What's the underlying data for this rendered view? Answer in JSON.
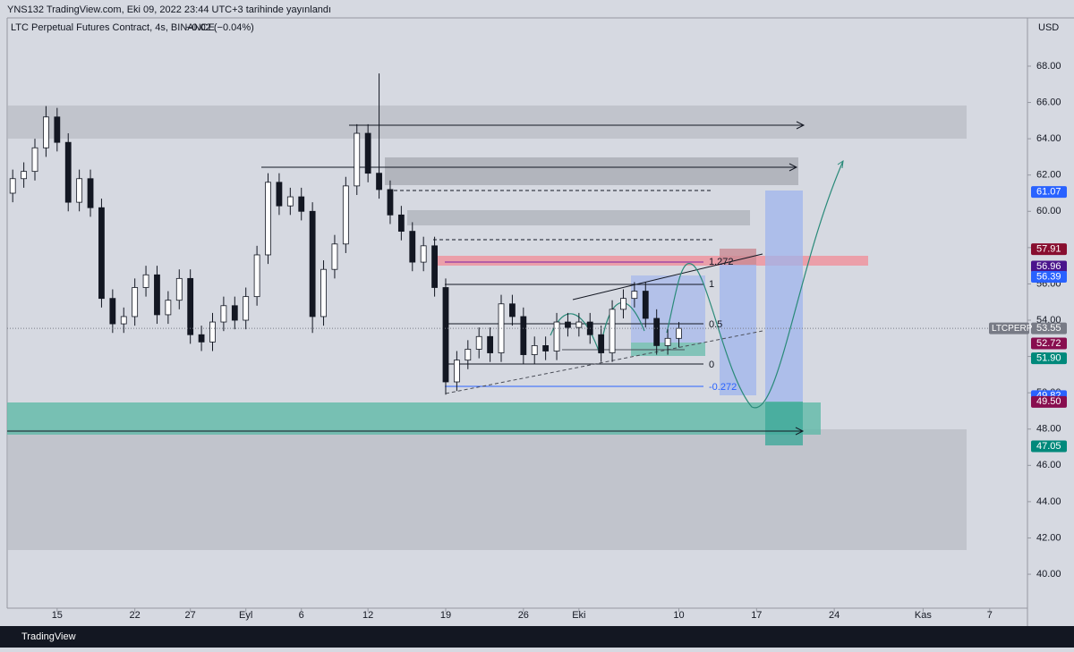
{
  "header": {
    "publisher": "YNS132 TradingView.com, Eki 09, 2022 23:44 UTC+3 tarihinde yayınlandı",
    "brand": "TradingView"
  },
  "chart_data": {
    "type": "candlestick",
    "title": "LTC Perpetual Futures Contract, 4s, BINANCE",
    "change": "−0.02 (−0.04%)",
    "currency": "USD",
    "symbol": "LTCPERP",
    "x": [
      -4,
      -3,
      -2,
      -1,
      0,
      1,
      2,
      3,
      4,
      5,
      6,
      7,
      8,
      9,
      10,
      11,
      12,
      13,
      14,
      15,
      16,
      17,
      18,
      19,
      20,
      21,
      22,
      23,
      24,
      25,
      26,
      27,
      28,
      29,
      30,
      31,
      32,
      33,
      34,
      35,
      36,
      37,
      38,
      39,
      40,
      41,
      42,
      43,
      44,
      45,
      46,
      47,
      48,
      49,
      50,
      51,
      52,
      53,
      54,
      55,
      56
    ],
    "open": [
      61.0,
      61.8,
      62.2,
      63.5,
      65.2,
      63.8,
      60.5,
      61.8,
      60.2,
      55.2,
      53.8,
      54.2,
      55.8,
      56.5,
      54.3,
      55.1,
      56.3,
      53.2,
      52.8,
      53.9,
      54.8,
      54.0,
      55.3,
      57.6,
      61.6,
      60.3,
      60.8,
      60.0,
      54.2,
      56.8,
      58.2,
      61.4,
      64.3,
      62.1,
      61.2,
      59.8,
      58.9,
      57.2,
      58.1,
      55.8,
      50.6,
      51.8,
      52.4,
      53.1,
      52.2,
      54.9,
      54.2,
      52.1,
      52.6,
      52.3,
      53.9,
      53.6,
      53.9,
      53.2,
      52.2,
      54.6,
      55.2,
      55.6,
      54.1,
      52.6,
      53.0
    ],
    "high": [
      62.3,
      62.7,
      64.0,
      65.8,
      65.7,
      64.3,
      62.3,
      62.3,
      60.7,
      55.7,
      54.7,
      56.3,
      57.0,
      57.0,
      55.6,
      56.8,
      56.8,
      53.7,
      54.4,
      55.3,
      55.3,
      55.8,
      58.1,
      62.1,
      62.1,
      61.3,
      61.3,
      60.5,
      57.3,
      58.7,
      61.9,
      64.8,
      64.8,
      67.6,
      61.7,
      60.3,
      59.4,
      58.6,
      58.6,
      56.3,
      52.3,
      52.9,
      53.6,
      53.6,
      55.4,
      55.4,
      54.7,
      53.1,
      53.1,
      54.4,
      54.4,
      54.4,
      54.4,
      53.7,
      55.1,
      55.7,
      56.1,
      56.1,
      54.6,
      53.5,
      53.9
    ],
    "low": [
      60.5,
      61.3,
      61.7,
      63.0,
      63.3,
      60.0,
      60.0,
      59.7,
      54.7,
      53.3,
      53.3,
      53.7,
      55.3,
      53.8,
      53.8,
      54.6,
      52.7,
      52.3,
      52.3,
      53.4,
      53.5,
      53.5,
      54.8,
      57.1,
      59.8,
      59.8,
      59.5,
      53.3,
      53.7,
      56.3,
      57.7,
      60.9,
      61.6,
      60.7,
      59.3,
      58.4,
      56.7,
      56.7,
      55.3,
      49.9,
      50.1,
      51.3,
      51.9,
      51.7,
      51.7,
      53.7,
      51.6,
      51.6,
      51.8,
      51.8,
      53.1,
      53.1,
      52.7,
      51.7,
      51.7,
      54.1,
      54.7,
      53.6,
      52.1,
      52.1,
      52.5
    ],
    "close": [
      61.8,
      62.2,
      63.5,
      65.2,
      63.8,
      60.5,
      61.8,
      60.2,
      55.2,
      53.8,
      54.2,
      55.8,
      56.5,
      54.3,
      55.1,
      56.3,
      53.2,
      52.8,
      53.9,
      54.8,
      54.0,
      55.3,
      57.6,
      61.6,
      60.3,
      60.8,
      60.0,
      54.2,
      56.8,
      58.2,
      61.4,
      64.3,
      62.1,
      61.2,
      59.8,
      58.9,
      57.2,
      58.1,
      55.8,
      50.6,
      51.8,
      52.4,
      53.1,
      52.2,
      54.9,
      54.2,
      52.1,
      52.6,
      52.3,
      53.9,
      53.6,
      53.9,
      53.2,
      52.2,
      54.6,
      55.2,
      55.6,
      54.1,
      52.6,
      53.0,
      53.55
    ],
    "xlim": [
      -4.5,
      87.4
    ],
    "xticks": [
      {
        "value": 0,
        "label": "15"
      },
      {
        "value": 7,
        "label": "22"
      },
      {
        "value": 12,
        "label": "27"
      },
      {
        "value": 17,
        "label": "Eyl"
      },
      {
        "value": 22,
        "label": "6"
      },
      {
        "value": 28,
        "label": "12"
      },
      {
        "value": 35,
        "label": "19"
      },
      {
        "value": 42,
        "label": "26"
      },
      {
        "value": 47,
        "label": "Eki"
      },
      {
        "value": 56,
        "label": "10"
      },
      {
        "value": 63,
        "label": "17"
      },
      {
        "value": 70,
        "label": "24"
      },
      {
        "value": 78,
        "label": "Kas"
      },
      {
        "value": 84,
        "label": "7"
      }
    ],
    "ylim": [
      38.13,
      70.66
    ],
    "yticks": [
      {
        "value": 40,
        "label": "40.00"
      },
      {
        "value": 42,
        "label": "42.00"
      },
      {
        "value": 44,
        "label": "44.00"
      },
      {
        "value": 46,
        "label": "46.00"
      },
      {
        "value": 48,
        "label": "48.00"
      },
      {
        "value": 50,
        "label": "50.00"
      },
      {
        "value": 52,
        "label": "52.00"
      },
      {
        "value": 54,
        "label": "54.00"
      },
      {
        "value": 56,
        "label": "56.00"
      },
      {
        "value": 58,
        "label": "58.00"
      },
      {
        "value": 60,
        "label": "60.00"
      },
      {
        "value": 62,
        "label": "62.00"
      },
      {
        "value": 64,
        "label": "64.00"
      },
      {
        "value": 66,
        "label": "66.00"
      },
      {
        "value": 68,
        "label": "68.00"
      }
    ],
    "price_labels": [
      {
        "value": 61.07,
        "label": "61.07",
        "color": "#2962ff"
      },
      {
        "value": 57.91,
        "label": "57.91",
        "color": "#880e2f"
      },
      {
        "value": 56.96,
        "label": "56.96",
        "color": "#4a148c"
      },
      {
        "value": 56.39,
        "label": "56.39",
        "color": "#2962ff"
      },
      {
        "value": 53.55,
        "label": "53.55",
        "color": "#787b86"
      },
      {
        "value": 52.72,
        "label": "52.72",
        "color": "#880e4f"
      },
      {
        "value": 51.9,
        "label": "51.90",
        "color": "#00897b"
      },
      {
        "value": 49.82,
        "label": "49.82",
        "color": "#2962ff"
      },
      {
        "value": 49.5,
        "label": "49.50",
        "color": "#880e4f"
      },
      {
        "value": 47.05,
        "label": "47.05",
        "color": "#00897b"
      }
    ],
    "fib_labels": [
      "1.272",
      "1",
      "0.5",
      "0",
      "-0.272"
    ]
  }
}
